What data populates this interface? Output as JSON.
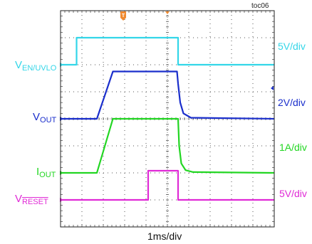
{
  "chart_data": {
    "type": "line",
    "title": "",
    "xlabel": "1ms/div",
    "ylabel": "",
    "figure_id": "toc06",
    "x_unit": "ms",
    "x_range": [
      0,
      10
    ],
    "grid": true,
    "series": [
      {
        "name": "VEN/UVLO",
        "label_main": "V",
        "label_sub": "EN/UVLO",
        "color": "#33d6e8",
        "scale": "5V/div",
        "baseline_div": 2.0,
        "points": [
          [
            0,
            0
          ],
          [
            0.75,
            0
          ],
          [
            0.75,
            1.0
          ],
          [
            5.5,
            1.0
          ],
          [
            5.5,
            0
          ],
          [
            10,
            0
          ]
        ]
      },
      {
        "name": "VOUT",
        "label_main": "V",
        "label_sub": "OUT",
        "color": "#1a2ecc",
        "scale": "2V/div",
        "baseline_div": 4.0,
        "points": [
          [
            0,
            0
          ],
          [
            1.7,
            0
          ],
          [
            2.45,
            1.75
          ],
          [
            5.45,
            1.75
          ],
          [
            5.5,
            1.3
          ],
          [
            5.6,
            0.6
          ],
          [
            5.75,
            0.2
          ],
          [
            6.1,
            0.04
          ],
          [
            10,
            0
          ]
        ]
      },
      {
        "name": "IOUT",
        "label_main": "I",
        "label_sub": "OUT",
        "color": "#22d622",
        "scale": "1A/div",
        "baseline_div": 6.0,
        "points": [
          [
            0,
            0
          ],
          [
            1.7,
            0
          ],
          [
            2.45,
            2.0
          ],
          [
            5.5,
            2.0
          ],
          [
            5.55,
            1.0
          ],
          [
            5.65,
            0.35
          ],
          [
            5.85,
            0.1
          ],
          [
            6.2,
            0.03
          ],
          [
            10,
            0
          ]
        ]
      },
      {
        "name": "VRESET",
        "label_main": "V",
        "label_sub": "RESET",
        "color": "#e02ad6",
        "scale": "5V/div",
        "baseline_div": 7.0,
        "points": [
          [
            0,
            0
          ],
          [
            4.1,
            0
          ],
          [
            4.1,
            1.08
          ],
          [
            5.5,
            1.08
          ],
          [
            5.5,
            0
          ],
          [
            10,
            0
          ]
        ]
      }
    ]
  }
}
